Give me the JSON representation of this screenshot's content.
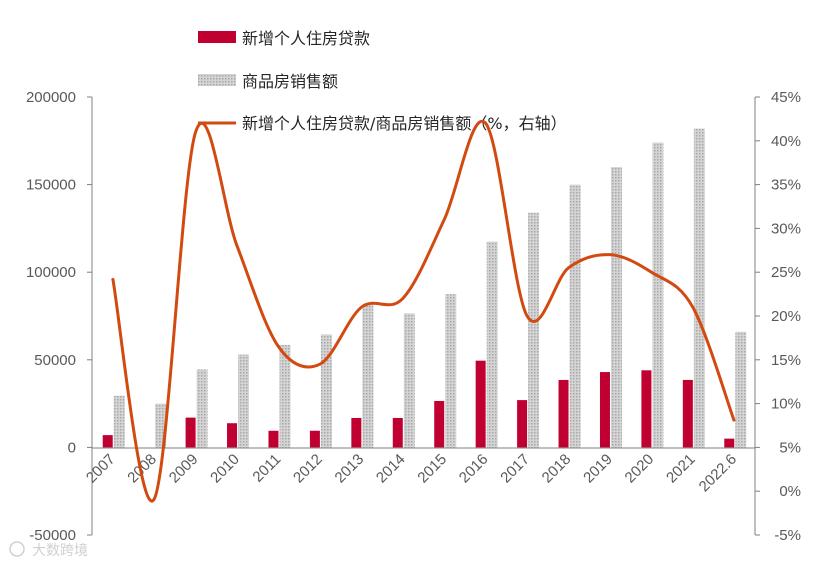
{
  "chart_data": {
    "type": "bar",
    "categories": [
      "2007",
      "2008",
      "2009",
      "2010",
      "2011",
      "2012",
      "2013",
      "2014",
      "2015",
      "2016",
      "2017",
      "2018",
      "2019",
      "2020",
      "2021",
      "2022.6"
    ],
    "series": [
      {
        "name": "新增个人住房贷款",
        "type": "bar",
        "axis": "left",
        "color": "#c00030",
        "values": [
          7000,
          0,
          17000,
          13800,
          9500,
          9500,
          16800,
          16800,
          26500,
          49500,
          27000,
          38500,
          43000,
          44000,
          38500,
          5000
        ]
      },
      {
        "name": "商品房销售额",
        "type": "bar",
        "axis": "left",
        "color": "#bfbfbf",
        "values": [
          29500,
          25000,
          44500,
          53000,
          58500,
          64500,
          81500,
          76500,
          87500,
          117500,
          134000,
          150000,
          160000,
          174000,
          182000,
          66000
        ]
      },
      {
        "name": "新增个人住房贷款/商品房销售额（%，右轴）",
        "type": "line",
        "axis": "right",
        "color": "#d24a10",
        "values": [
          24.3,
          -0.9,
          41,
          28,
          16.5,
          14.5,
          21,
          22,
          31,
          42,
          20,
          25.5,
          27,
          25,
          21,
          8
        ]
      }
    ],
    "left_axis": {
      "min": -50000,
      "max": 200000,
      "ticks": [
        "200000",
        "150000",
        "100000",
        "50000",
        "0",
        "-50000"
      ]
    },
    "right_axis": {
      "min": -5,
      "max": 45,
      "ticks": [
        "45%",
        "40%",
        "35%",
        "30%",
        "25%",
        "20%",
        "15%",
        "10%",
        "5%",
        "0%",
        "-5%"
      ]
    },
    "grid": false,
    "legend_placement": "top",
    "watermark": "大数跨境"
  }
}
